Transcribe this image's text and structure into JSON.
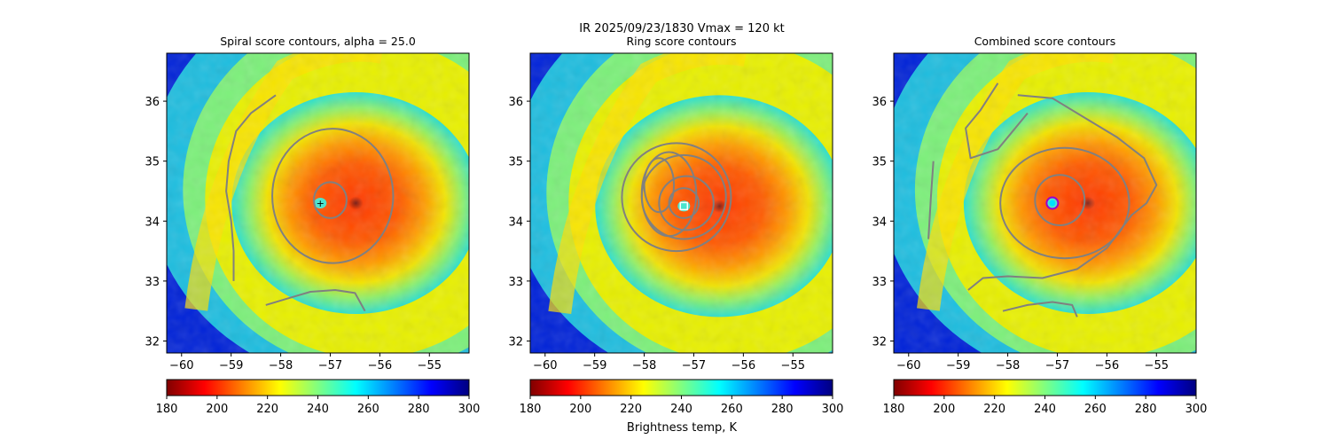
{
  "figure": {
    "suptitle_line1": "IR  2025/09/23/1830    Vmax = 120 kt",
    "colorbar_label": "Brightness temp, K"
  },
  "colors": {
    "contour": "#808080",
    "center_marker_outer": "#9b00c8",
    "center_marker_inner": "#00e0ff",
    "ring_center_marker": "#ffffff"
  },
  "colormap": {
    "name": "jet_r",
    "stops": [
      "#800000",
      "#ff0000",
      "#ff8000",
      "#ffff00",
      "#80ff80",
      "#00ffff",
      "#0080ff",
      "#0000ff",
      "#000080"
    ]
  },
  "chart_data": [
    {
      "type": "heatmap",
      "title": "Spiral score contours, alpha = 25.0",
      "xlabel": "",
      "ylabel": "",
      "xlim": [
        -60.3,
        -54.2
      ],
      "ylim": [
        31.8,
        36.8
      ],
      "xticks": [
        -60,
        -59,
        -58,
        -57,
        -56,
        -55
      ],
      "yticks": [
        32,
        33,
        34,
        35,
        36
      ],
      "colorbar": {
        "min": 180,
        "max": 300,
        "ticks": [
          180,
          200,
          220,
          240,
          260,
          280,
          300
        ]
      },
      "storm_center": {
        "lon": -57.2,
        "lat": 34.3
      },
      "contours": [
        {
          "kind": "ring",
          "lon": -57.0,
          "lat": 34.35,
          "rx": 0.33,
          "ry": 0.3
        },
        {
          "kind": "ring",
          "lon": -56.95,
          "lat": 34.42,
          "rx": 1.22,
          "ry": 1.12
        },
        {
          "kind": "line",
          "points": [
            [
              -58.1,
              36.1
            ],
            [
              -58.6,
              35.8
            ],
            [
              -58.9,
              35.5
            ],
            [
              -59.05,
              35.0
            ],
            [
              -59.1,
              34.5
            ],
            [
              -59.0,
              34.0
            ],
            [
              -58.95,
              33.5
            ],
            [
              -58.95,
              33.0
            ]
          ]
        },
        {
          "kind": "line",
          "points": [
            [
              -58.3,
              32.6
            ],
            [
              -57.9,
              32.7
            ],
            [
              -57.4,
              32.82
            ],
            [
              -56.9,
              32.85
            ],
            [
              -56.5,
              32.8
            ],
            [
              -56.4,
              32.65
            ],
            [
              -56.3,
              32.5
            ]
          ]
        }
      ]
    },
    {
      "type": "heatmap",
      "title": "Ring score contours",
      "xlabel": "",
      "ylabel": "",
      "xlim": [
        -60.3,
        -54.2
      ],
      "ylim": [
        31.8,
        36.8
      ],
      "xticks": [
        -60,
        -59,
        -58,
        -57,
        -56,
        -55
      ],
      "yticks": [
        32,
        33,
        34,
        35,
        36
      ],
      "colorbar": {
        "min": 180,
        "max": 300,
        "ticks": [
          180,
          200,
          220,
          240,
          260,
          280,
          300
        ]
      },
      "storm_center": {
        "lon": -57.2,
        "lat": 34.25
      },
      "contours": [
        {
          "kind": "ring",
          "lon": -57.2,
          "lat": 34.3,
          "rx": 0.3,
          "ry": 0.25
        },
        {
          "kind": "ring",
          "lon": -57.15,
          "lat": 34.3,
          "rx": 0.55,
          "ry": 0.45
        },
        {
          "kind": "ring",
          "lon": -57.2,
          "lat": 34.4,
          "rx": 0.85,
          "ry": 0.7
        },
        {
          "kind": "ring",
          "lon": -57.35,
          "lat": 34.4,
          "rx": 1.1,
          "ry": 0.9
        },
        {
          "kind": "ring",
          "lon": -57.5,
          "lat": 34.45,
          "rx": 0.55,
          "ry": 0.7
        },
        {
          "kind": "ring",
          "lon": -57.7,
          "lat": 34.6,
          "rx": 0.3,
          "ry": 0.45
        }
      ]
    },
    {
      "type": "heatmap",
      "title": "Combined score contours",
      "xlabel": "",
      "ylabel": "",
      "xlim": [
        -60.3,
        -54.2
      ],
      "ylim": [
        31.8,
        36.8
      ],
      "xticks": [
        -60,
        -59,
        -58,
        -57,
        -56,
        -55
      ],
      "yticks": [
        32,
        33,
        34,
        35,
        36
      ],
      "colorbar": {
        "min": 180,
        "max": 300,
        "ticks": [
          180,
          200,
          220,
          240,
          260,
          280,
          300
        ]
      },
      "storm_center": {
        "lon": -57.1,
        "lat": 34.3
      },
      "contours": [
        {
          "kind": "ring",
          "lon": -56.95,
          "lat": 34.35,
          "rx": 0.5,
          "ry": 0.42
        },
        {
          "kind": "ring",
          "lon": -56.85,
          "lat": 34.3,
          "rx": 1.3,
          "ry": 0.92
        },
        {
          "kind": "line",
          "points": [
            [
              -57.8,
              36.1
            ],
            [
              -57.1,
              36.05
            ],
            [
              -56.5,
              35.75
            ],
            [
              -55.8,
              35.4
            ],
            [
              -55.25,
              35.05
            ],
            [
              -55.0,
              34.6
            ],
            [
              -55.2,
              34.3
            ],
            [
              -55.5,
              34.1
            ],
            [
              -56.0,
              33.55
            ],
            [
              -56.6,
              33.2
            ],
            [
              -57.3,
              33.05
            ],
            [
              -58.0,
              33.08
            ],
            [
              -58.5,
              33.05
            ],
            [
              -58.8,
              32.85
            ]
          ]
        },
        {
          "kind": "line",
          "points": [
            [
              -58.2,
              36.3
            ],
            [
              -58.55,
              35.85
            ],
            [
              -58.85,
              35.55
            ],
            [
              -58.75,
              35.05
            ],
            [
              -58.2,
              35.2
            ],
            [
              -57.95,
              35.45
            ],
            [
              -57.6,
              35.8
            ]
          ]
        },
        {
          "kind": "line",
          "points": [
            [
              -59.5,
              35.0
            ],
            [
              -59.55,
              34.4
            ],
            [
              -59.6,
              33.7
            ]
          ]
        },
        {
          "kind": "line",
          "points": [
            [
              -58.1,
              32.5
            ],
            [
              -57.6,
              32.6
            ],
            [
              -57.1,
              32.65
            ],
            [
              -56.7,
              32.6
            ],
            [
              -56.6,
              32.4
            ]
          ]
        }
      ]
    }
  ]
}
